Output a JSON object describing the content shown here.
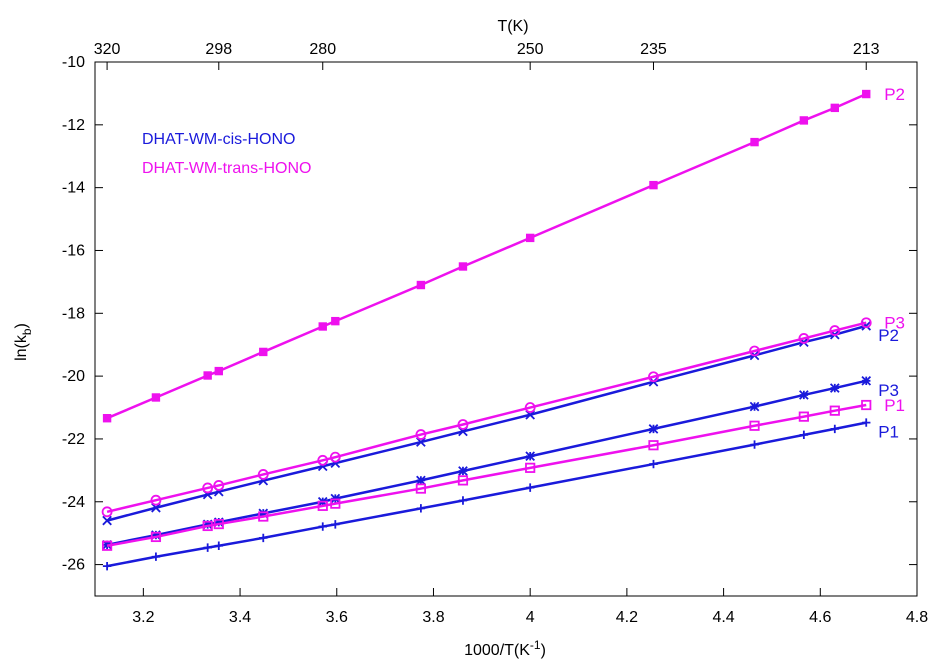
{
  "chart_data": {
    "type": "line",
    "xlabel": "1000/T(K",
    "xlabel_sup": "-1",
    "xlabel_close": ")",
    "ylabel": "ln(k",
    "ylabel_sub": "b",
    "ylabel_close": ")",
    "top_axis_title": "T(K)",
    "xlim": [
      3.1,
      4.8
    ],
    "ylim": [
      -27,
      -10
    ],
    "x_ticks": [
      3.2,
      3.4,
      3.6,
      3.8,
      4,
      4.2,
      4.4,
      4.6,
      4.8
    ],
    "x_tick_labels": [
      "3.2",
      "3.4",
      "3.6",
      "3.8",
      "4",
      "4.2",
      "4.4",
      "4.6",
      "4.8"
    ],
    "y_ticks": [
      -10,
      -12,
      -14,
      -16,
      -18,
      -20,
      -22,
      -24,
      -26
    ],
    "y_tick_labels": [
      "-10",
      "-12",
      "-14",
      "-16",
      "-18",
      "-20",
      "-22",
      "-24",
      "-26"
    ],
    "top_ticks": [
      {
        "x": 3.125,
        "label": "320"
      },
      {
        "x": 3.356,
        "label": "298"
      },
      {
        "x": 3.571,
        "label": "280"
      },
      {
        "x": 4.0,
        "label": "250"
      },
      {
        "x": 4.255,
        "label": "235"
      },
      {
        "x": 4.695,
        "label": "213"
      }
    ],
    "legend": [
      {
        "label": "DHAT-WM-cis-HONO",
        "color": "#1a1adb"
      },
      {
        "label": "DHAT-WM-trans-HONO",
        "color": "#ee11ee"
      }
    ],
    "x": [
      3.125,
      3.226,
      3.333,
      3.356,
      3.448,
      3.571,
      3.597,
      3.774,
      3.861,
      4.0,
      4.255,
      4.464,
      4.566,
      4.63,
      4.695
    ],
    "series": [
      {
        "name": "P1",
        "group": "cis",
        "color": "#1a1adb",
        "marker": "plus",
        "values": [
          -26.05,
          -25.75,
          -25.46,
          -25.4,
          -25.15,
          -24.79,
          -24.72,
          -24.21,
          -23.96,
          -23.55,
          -22.8,
          -22.18,
          -21.87,
          -21.68,
          -21.48
        ]
      },
      {
        "name": "P2",
        "group": "cis",
        "color": "#1a1adb",
        "marker": "x",
        "values": [
          -24.6,
          -24.19,
          -23.77,
          -23.68,
          -23.33,
          -22.87,
          -22.77,
          -22.1,
          -21.76,
          -21.23,
          -20.18,
          -19.34,
          -18.92,
          -18.68,
          -18.4
        ]
      },
      {
        "name": "P3",
        "group": "cis",
        "color": "#1a1adb",
        "marker": "star",
        "values": [
          -25.37,
          -25.06,
          -24.72,
          -24.65,
          -24.37,
          -24.0,
          -23.9,
          -23.32,
          -23.02,
          -22.55,
          -21.68,
          -20.97,
          -20.6,
          -20.38,
          -20.15
        ]
      },
      {
        "name": "P1",
        "group": "trans",
        "color": "#ee11ee",
        "marker": "open-square",
        "values": [
          -25.4,
          -25.12,
          -24.77,
          -24.71,
          -24.47,
          -24.13,
          -24.06,
          -23.58,
          -23.32,
          -22.92,
          -22.2,
          -21.58,
          -21.29,
          -21.1,
          -20.92
        ]
      },
      {
        "name": "P2",
        "group": "trans",
        "color": "#ee11ee",
        "marker": "filled-square",
        "values": [
          -21.34,
          -20.68,
          -19.98,
          -19.84,
          -19.23,
          -18.42,
          -18.25,
          -17.1,
          -16.51,
          -15.6,
          -13.92,
          -12.55,
          -11.86,
          -11.46,
          -11.02
        ]
      },
      {
        "name": "P3",
        "group": "trans",
        "color": "#ee11ee",
        "marker": "circle",
        "values": [
          -24.32,
          -23.95,
          -23.56,
          -23.48,
          -23.13,
          -22.68,
          -22.58,
          -21.86,
          -21.54,
          -21.0,
          -20.02,
          -19.2,
          -18.8,
          -18.55,
          -18.3
        ]
      }
    ],
    "end_labels": [
      {
        "text": "P2",
        "color": "#ee11ee",
        "series_index": 4
      },
      {
        "text": "P3",
        "color": "#ee11ee",
        "series_index": 5
      },
      {
        "text": "P2",
        "color": "#1a1adb",
        "series_index": 1
      },
      {
        "text": "P3",
        "color": "#1a1adb",
        "series_index": 2
      },
      {
        "text": "P1",
        "color": "#ee11ee",
        "series_index": 3
      },
      {
        "text": "P1",
        "color": "#1a1adb",
        "series_index": 0
      }
    ]
  }
}
